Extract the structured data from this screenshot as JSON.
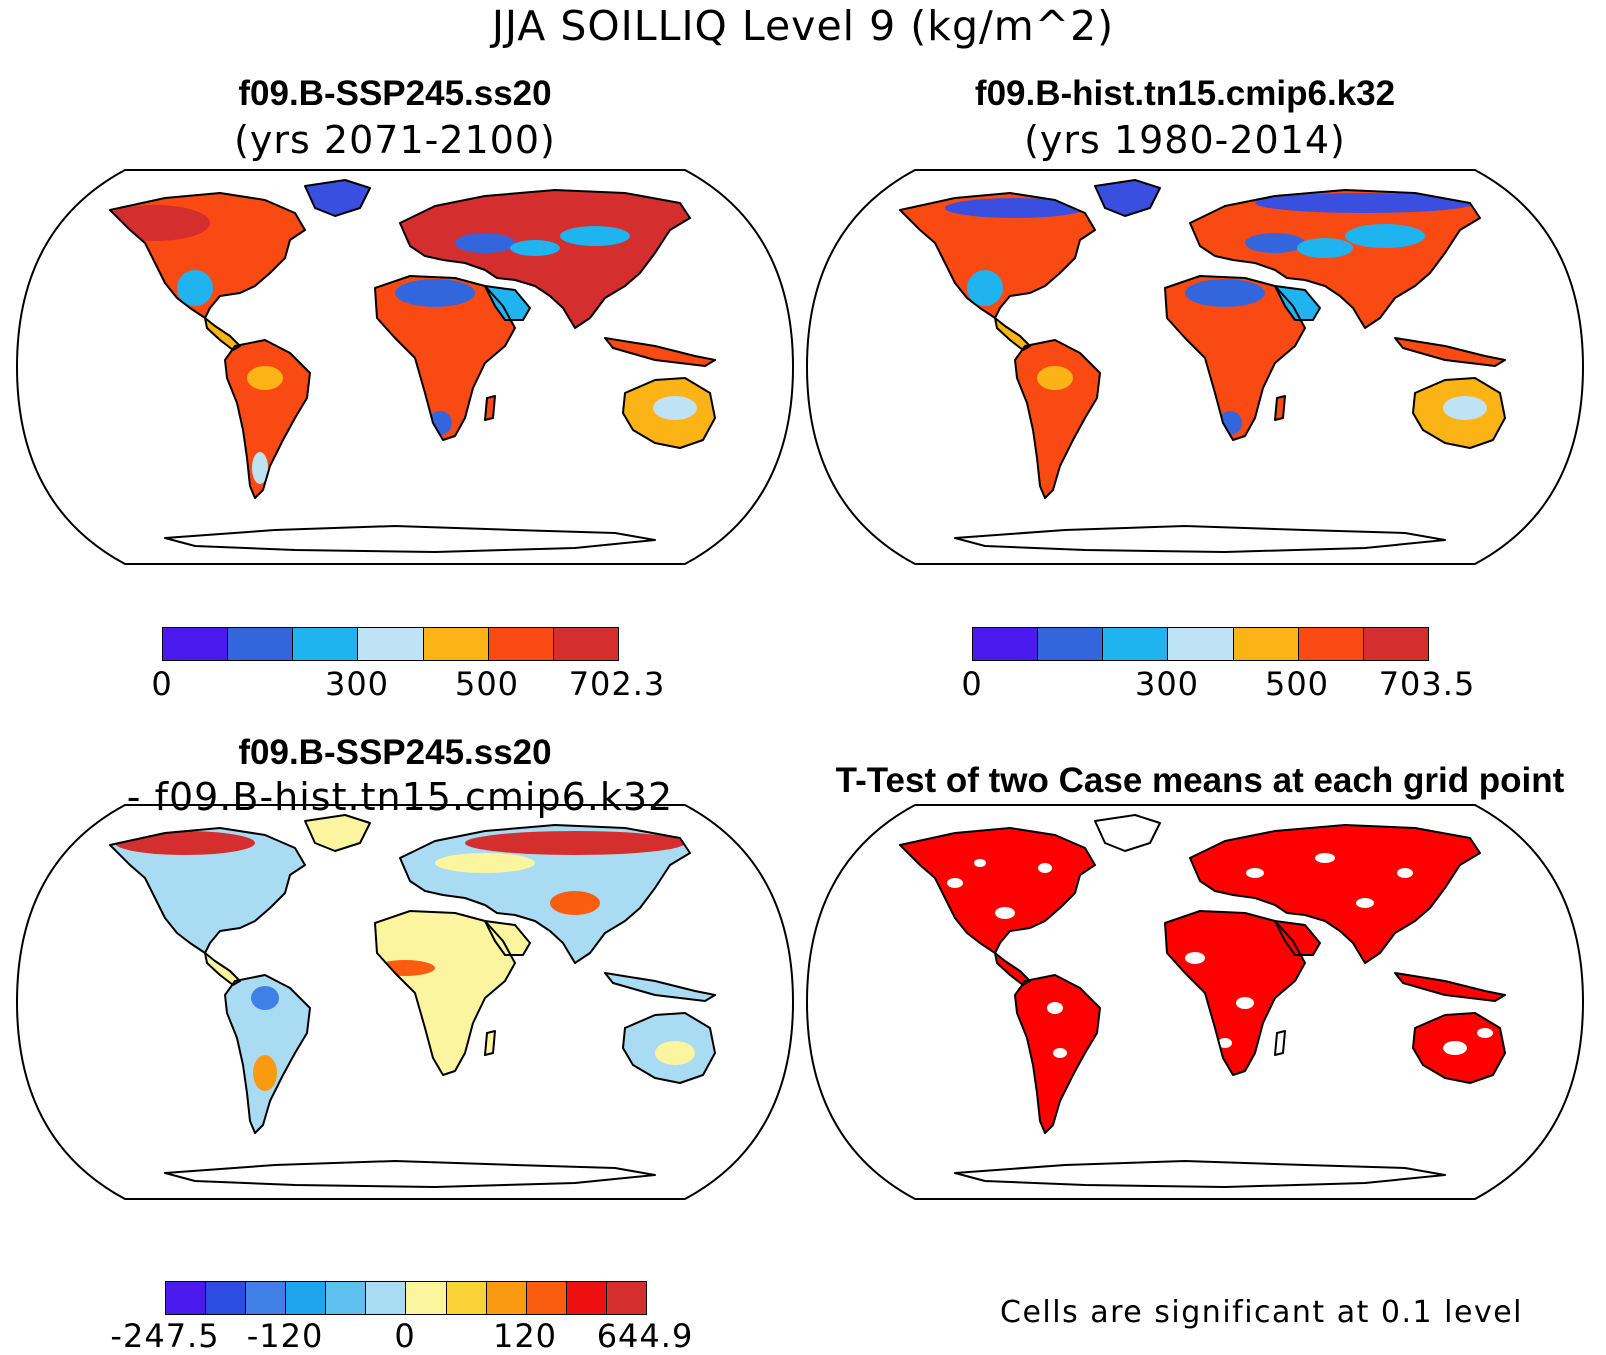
{
  "title": "JJA SOILLIQ Level 9 (kg/m^2)",
  "panels": {
    "top_left": {
      "title": "f09.B-SSP245.ss20",
      "subtitle": "(yrs 2071-2100)"
    },
    "top_right": {
      "title": "f09.B-hist.tn15.cmip6.k32",
      "subtitle": "(yrs 1980-2014)"
    },
    "bottom_left": {
      "title": "f09.B-SSP245.ss20",
      "subtitle": "- f09.B-hist.tn15.cmip6.k32"
    },
    "bottom_right": {
      "title": "T-Test of two Case means at each grid point",
      "note": "Cells are significant at 0.1 level"
    }
  },
  "colorbars": {
    "top_left": {
      "colors": [
        "#4b1aee",
        "#3366dd",
        "#1fb3f0",
        "#bde3f5",
        "#fbb315",
        "#f94a14",
        "#d42e2e"
      ],
      "labels": [
        "0",
        "300",
        "500",
        "702.3"
      ]
    },
    "top_right": {
      "colors": [
        "#4b1aee",
        "#3366dd",
        "#1fb3f0",
        "#bde3f5",
        "#fbb315",
        "#f94a14",
        "#d42e2e"
      ],
      "labels": [
        "0",
        "300",
        "500",
        "703.5"
      ]
    },
    "bottom_left": {
      "colors": [
        "#4b1aee",
        "#2b4de0",
        "#3f7fe6",
        "#1fa5ee",
        "#5fc0ef",
        "#a9dcf2",
        "#fbf5a0",
        "#fbd238",
        "#f99a10",
        "#f95d10",
        "#ee1010",
        "#d42e2e"
      ],
      "labels": [
        "-247.5",
        "-120",
        "0",
        "120",
        "644.9"
      ]
    }
  }
}
